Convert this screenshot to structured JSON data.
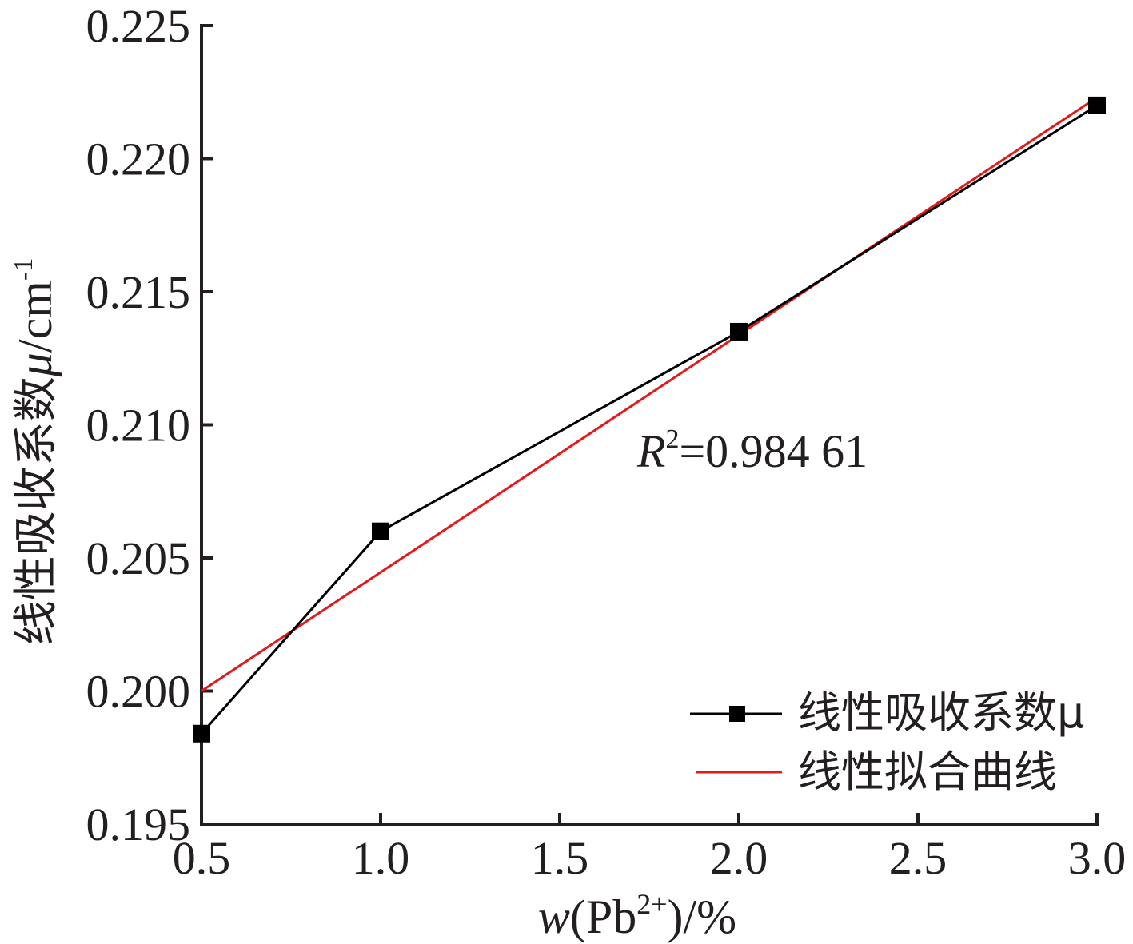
{
  "chart_data": {
    "type": "line",
    "x": [
      0.5,
      1.0,
      2.0,
      3.0
    ],
    "xticks": [
      "0.5",
      "1.0",
      "1.5",
      "2.0",
      "2.5",
      "3.0"
    ],
    "xtick_values": [
      0.5,
      1.0,
      1.5,
      2.0,
      2.5,
      3.0
    ],
    "yticks": [
      "0.195",
      "0.200",
      "0.205",
      "0.210",
      "0.215",
      "0.220",
      "0.225"
    ],
    "ytick_values": [
      0.195,
      0.2,
      0.205,
      0.21,
      0.215,
      0.22,
      0.225
    ],
    "xlim": [
      0.5,
      3.0
    ],
    "ylim": [
      0.195,
      0.225
    ],
    "xlabel": {
      "var": "w",
      "open": "(Pb",
      "sup": "2+",
      "close": ")/%"
    },
    "ylabel": {
      "main": "线性吸收系数",
      "mu": "μ",
      "unit": "/cm",
      "sup": "-1"
    },
    "series": [
      {
        "name": "线性吸收系数μ",
        "type": "line-marker",
        "color": "#000000",
        "marker": "square",
        "values": [
          0.1984,
          0.206,
          0.2135,
          0.222
        ]
      },
      {
        "name": "线性拟合曲线",
        "type": "line",
        "color": "#e3191c",
        "x": [
          0.5,
          3.0
        ],
        "values": [
          0.2,
          0.2223
        ]
      }
    ],
    "annotation": {
      "var": "R",
      "sup": "2",
      "text": "=0.984 61"
    },
    "legend": "bottom-right",
    "grid": false
  }
}
